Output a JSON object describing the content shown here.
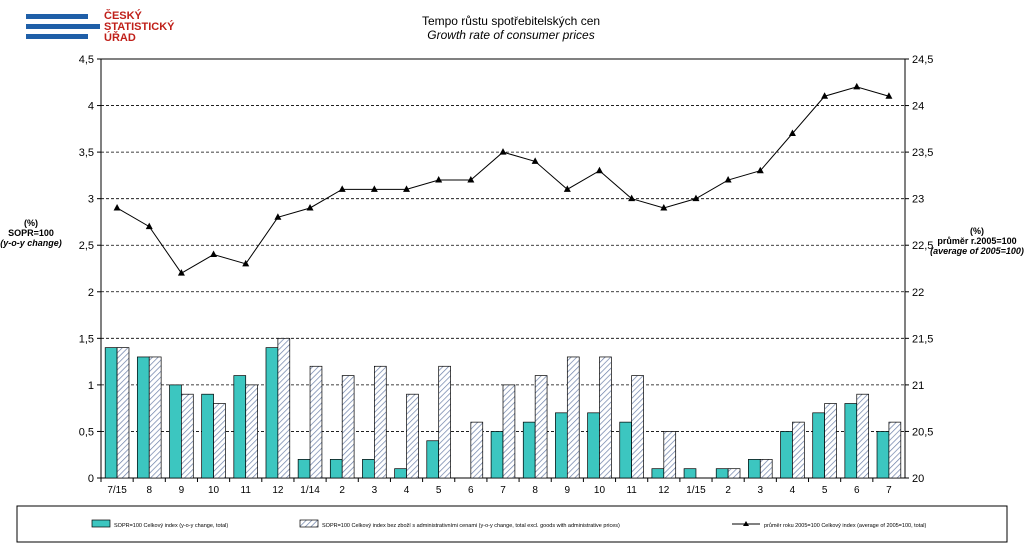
{
  "logo": {
    "lines": [
      "ČESKÝ",
      "STATISTICKÝ",
      "ÚŘAD"
    ],
    "bar_color": "#1f5fa8",
    "text_color": "#c0201a"
  },
  "chart_data": {
    "type": "bar",
    "title": "Tempo růstu  spotřebitelských  cen",
    "subtitle": "Growth rate  of consumer prices",
    "categories": [
      "7/15",
      "8",
      "9",
      "10",
      "11",
      "12",
      "1/14",
      "2",
      "3",
      "4",
      "5",
      "6",
      "7",
      "8",
      "9",
      "10",
      "11",
      "12",
      "1/15",
      "2",
      "3",
      "4",
      "5",
      "6",
      "7"
    ],
    "left_axis": {
      "label_lines": [
        "(%)",
        "SOPR=100",
        "(y-o-y change)"
      ],
      "ylim": [
        0,
        4.5
      ],
      "ticks": [
        "0",
        "0,5",
        "1",
        "1,5",
        "2",
        "2,5",
        "3",
        "3,5",
        "4",
        "4,5"
      ]
    },
    "right_axis": {
      "label_lines": [
        "(%)",
        "průměr r.2005=100",
        "(average of 2005=100)"
      ],
      "ylim": [
        20,
        24.5
      ],
      "ticks": [
        "20",
        "20,5",
        "21",
        "21,5",
        "22",
        "22,5",
        "23",
        "23,5",
        "24",
        "24,5"
      ]
    },
    "series": [
      {
        "name": "SOPR=100 Celkový index (y-o-y change, total)",
        "kind": "bar",
        "color": "#3cc6c0",
        "values": [
          1.4,
          1.3,
          1.0,
          0.9,
          1.1,
          1.4,
          0.2,
          0.2,
          0.2,
          0.1,
          0.4,
          0.0,
          0.5,
          0.6,
          0.7,
          0.7,
          0.6,
          0.1,
          0.1,
          0.1,
          0.2,
          0.5,
          0.7,
          0.8,
          0.5
        ]
      },
      {
        "name": "SOPR=100 Celkový index bez zboží s administrativními cenami (y-o-y change, total excl. goods with administrative prices)",
        "kind": "bar-hatched",
        "color": "#6b7fa8",
        "values": [
          1.4,
          1.3,
          0.9,
          0.8,
          1.0,
          1.5,
          1.2,
          1.1,
          1.2,
          0.9,
          1.2,
          0.6,
          1.0,
          1.1,
          1.3,
          1.3,
          1.1,
          0.5,
          0.0,
          0.1,
          0.2,
          0.6,
          0.8,
          0.9,
          0.6
        ]
      },
      {
        "name": "průměr roku  2005=100 Celkový index (average of 2005=100, total)",
        "kind": "line",
        "axis": "right",
        "color": "#000000",
        "values": [
          22.9,
          22.7,
          22.2,
          22.4,
          22.3,
          22.8,
          22.9,
          23.1,
          23.1,
          23.1,
          23.2,
          23.2,
          23.5,
          23.4,
          23.1,
          23.3,
          23.0,
          22.9,
          23.0,
          23.2,
          23.3,
          23.7,
          24.1,
          24.2,
          24.1
        ]
      }
    ],
    "grid": "horizontal dashed",
    "legend": "bottom"
  }
}
